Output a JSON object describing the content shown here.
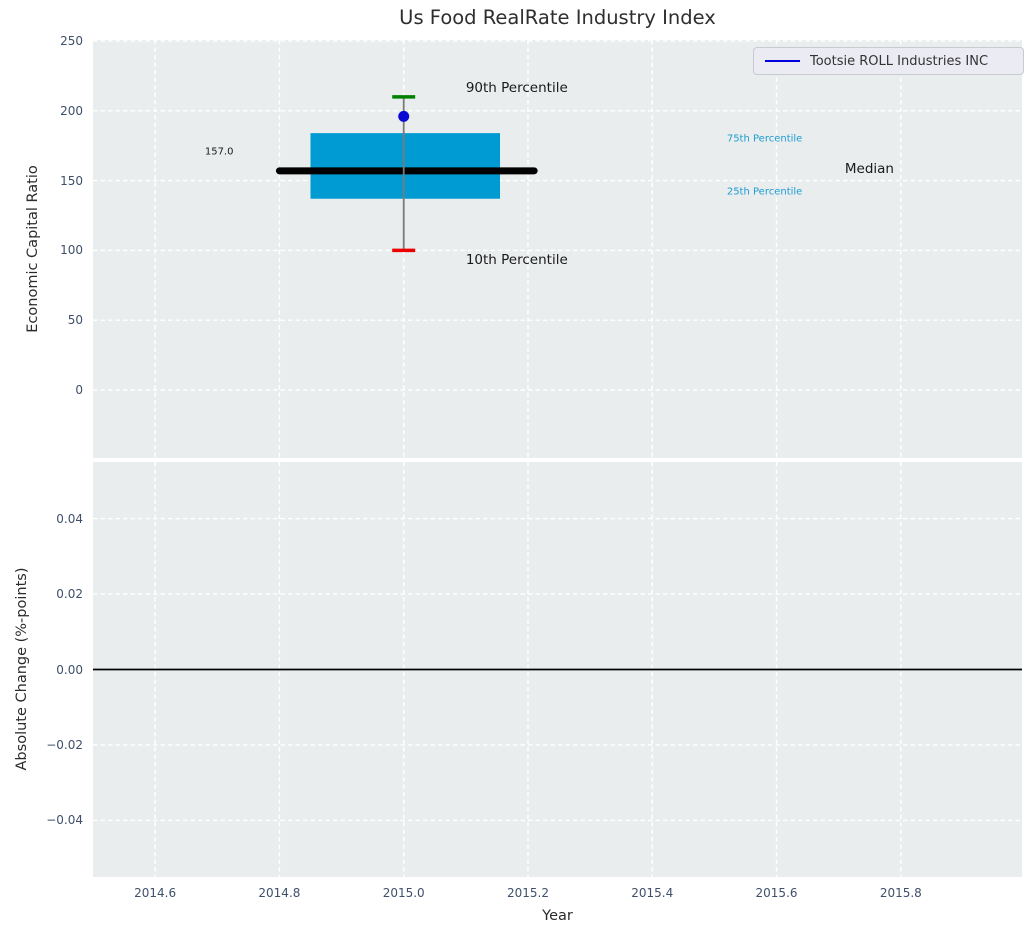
{
  "colors": {
    "panel_bg": "#eaedee",
    "grid": "#ffffff",
    "box_fill": "#009bd2",
    "median_line": "#000000",
    "whisker": "#7a7a7a",
    "cap_upper": "#008000",
    "cap_lower": "#ee0000",
    "marker": "#0a0ad2",
    "tick_label": "#3f506b",
    "axis_label": "#2b2b2b",
    "title": "#2e2e2e",
    "percentile_label": "#1c9cd3",
    "annotation_dark": "#1a1a1a",
    "zero_line": "#000000",
    "legend_line": "#0000e0",
    "legend_bg": "#ebebf3",
    "legend_border": "#c9c9cf"
  },
  "chart_data": [
    {
      "type": "boxplot",
      "title": "Us Food RealRate Industry Index",
      "xlabel": "",
      "ylabel": "Economic Capital Ratio",
      "xlim": [
        2014.5,
        2015.995
      ],
      "ylim": [
        -48.7,
        250.7
      ],
      "grid": "white dashed, on",
      "legend": {
        "label": "Tootsie ROLL Industries INC",
        "position": "upper right"
      },
      "xticks": [
        {
          "v": 2014.6,
          "label": ""
        },
        {
          "v": 2014.8,
          "label": ""
        },
        {
          "v": 2015.0,
          "label": ""
        },
        {
          "v": 2015.2,
          "label": ""
        },
        {
          "v": 2015.4,
          "label": ""
        },
        {
          "v": 2015.6,
          "label": ""
        },
        {
          "v": 2015.8,
          "label": ""
        }
      ],
      "yticks": [
        {
          "v": 250,
          "label": "250"
        },
        {
          "v": 200,
          "label": "200"
        },
        {
          "v": 150,
          "label": "150"
        },
        {
          "v": 100,
          "label": "100"
        },
        {
          "v": 50,
          "label": "50"
        },
        {
          "v": 0,
          "label": "0"
        }
      ],
      "box": {
        "x_center": 2015.0,
        "box_x_range": [
          2014.85,
          2015.155
        ],
        "median": 157.0,
        "median_x_range": [
          2014.8,
          2015.21
        ],
        "percentile_25": 137,
        "percentile_75": 184,
        "percentile_10": 100,
        "percentile_90": 210,
        "cap_halfwidth": 0.0185
      },
      "company_point": {
        "name": "Tootsie ROLL Industries INC",
        "x": 2015.0,
        "y": 196
      },
      "annotations": [
        {
          "id": "p90-label",
          "text": "90th Percentile",
          "x": 2015.1,
          "y": 216,
          "color": "#1a1a1a",
          "size": 13.5
        },
        {
          "id": "p10-label",
          "text": "10th Percentile",
          "x": 2015.1,
          "y": 93,
          "color": "#1a1a1a",
          "size": 13.5
        },
        {
          "id": "p75-label",
          "text": "75th Percentile",
          "x": 2015.52,
          "y": 180,
          "color": "#1c9cd3",
          "size": 10
        },
        {
          "id": "p25-label",
          "text": "25th Percentile",
          "x": 2015.52,
          "y": 141.5,
          "color": "#1c9cd3",
          "size": 10
        },
        {
          "id": "median-label",
          "text": "Median",
          "x": 2015.71,
          "y": 158,
          "color": "#1a1a1a",
          "size": 13.5
        },
        {
          "id": "median-value",
          "text": "157.0",
          "x": 2014.68,
          "y": 170.5,
          "color": "#1a1a1a",
          "size": 10
        }
      ]
    },
    {
      "type": "line",
      "title": "",
      "xlabel": "Year",
      "ylabel": "Absolute Change (%-points)",
      "xlim": [
        2014.5,
        2015.995
      ],
      "ylim": [
        -0.055,
        0.055
      ],
      "grid": "white dashed, on",
      "xticks": [
        {
          "v": 2014.6,
          "label": "2014.6"
        },
        {
          "v": 2014.8,
          "label": "2014.8"
        },
        {
          "v": 2015.0,
          "label": "2015.0"
        },
        {
          "v": 2015.2,
          "label": "2015.2"
        },
        {
          "v": 2015.4,
          "label": "2015.4"
        },
        {
          "v": 2015.6,
          "label": "2015.6"
        },
        {
          "v": 2015.8,
          "label": "2015.8"
        }
      ],
      "yticks": [
        {
          "v": 0.04,
          "label": "0.04"
        },
        {
          "v": 0.02,
          "label": "0.02"
        },
        {
          "v": 0.0,
          "label": "0.00"
        },
        {
          "v": -0.02,
          "label": "−0.02"
        },
        {
          "v": -0.04,
          "label": "−0.04"
        }
      ],
      "zero_line": 0.0,
      "series": []
    }
  ]
}
